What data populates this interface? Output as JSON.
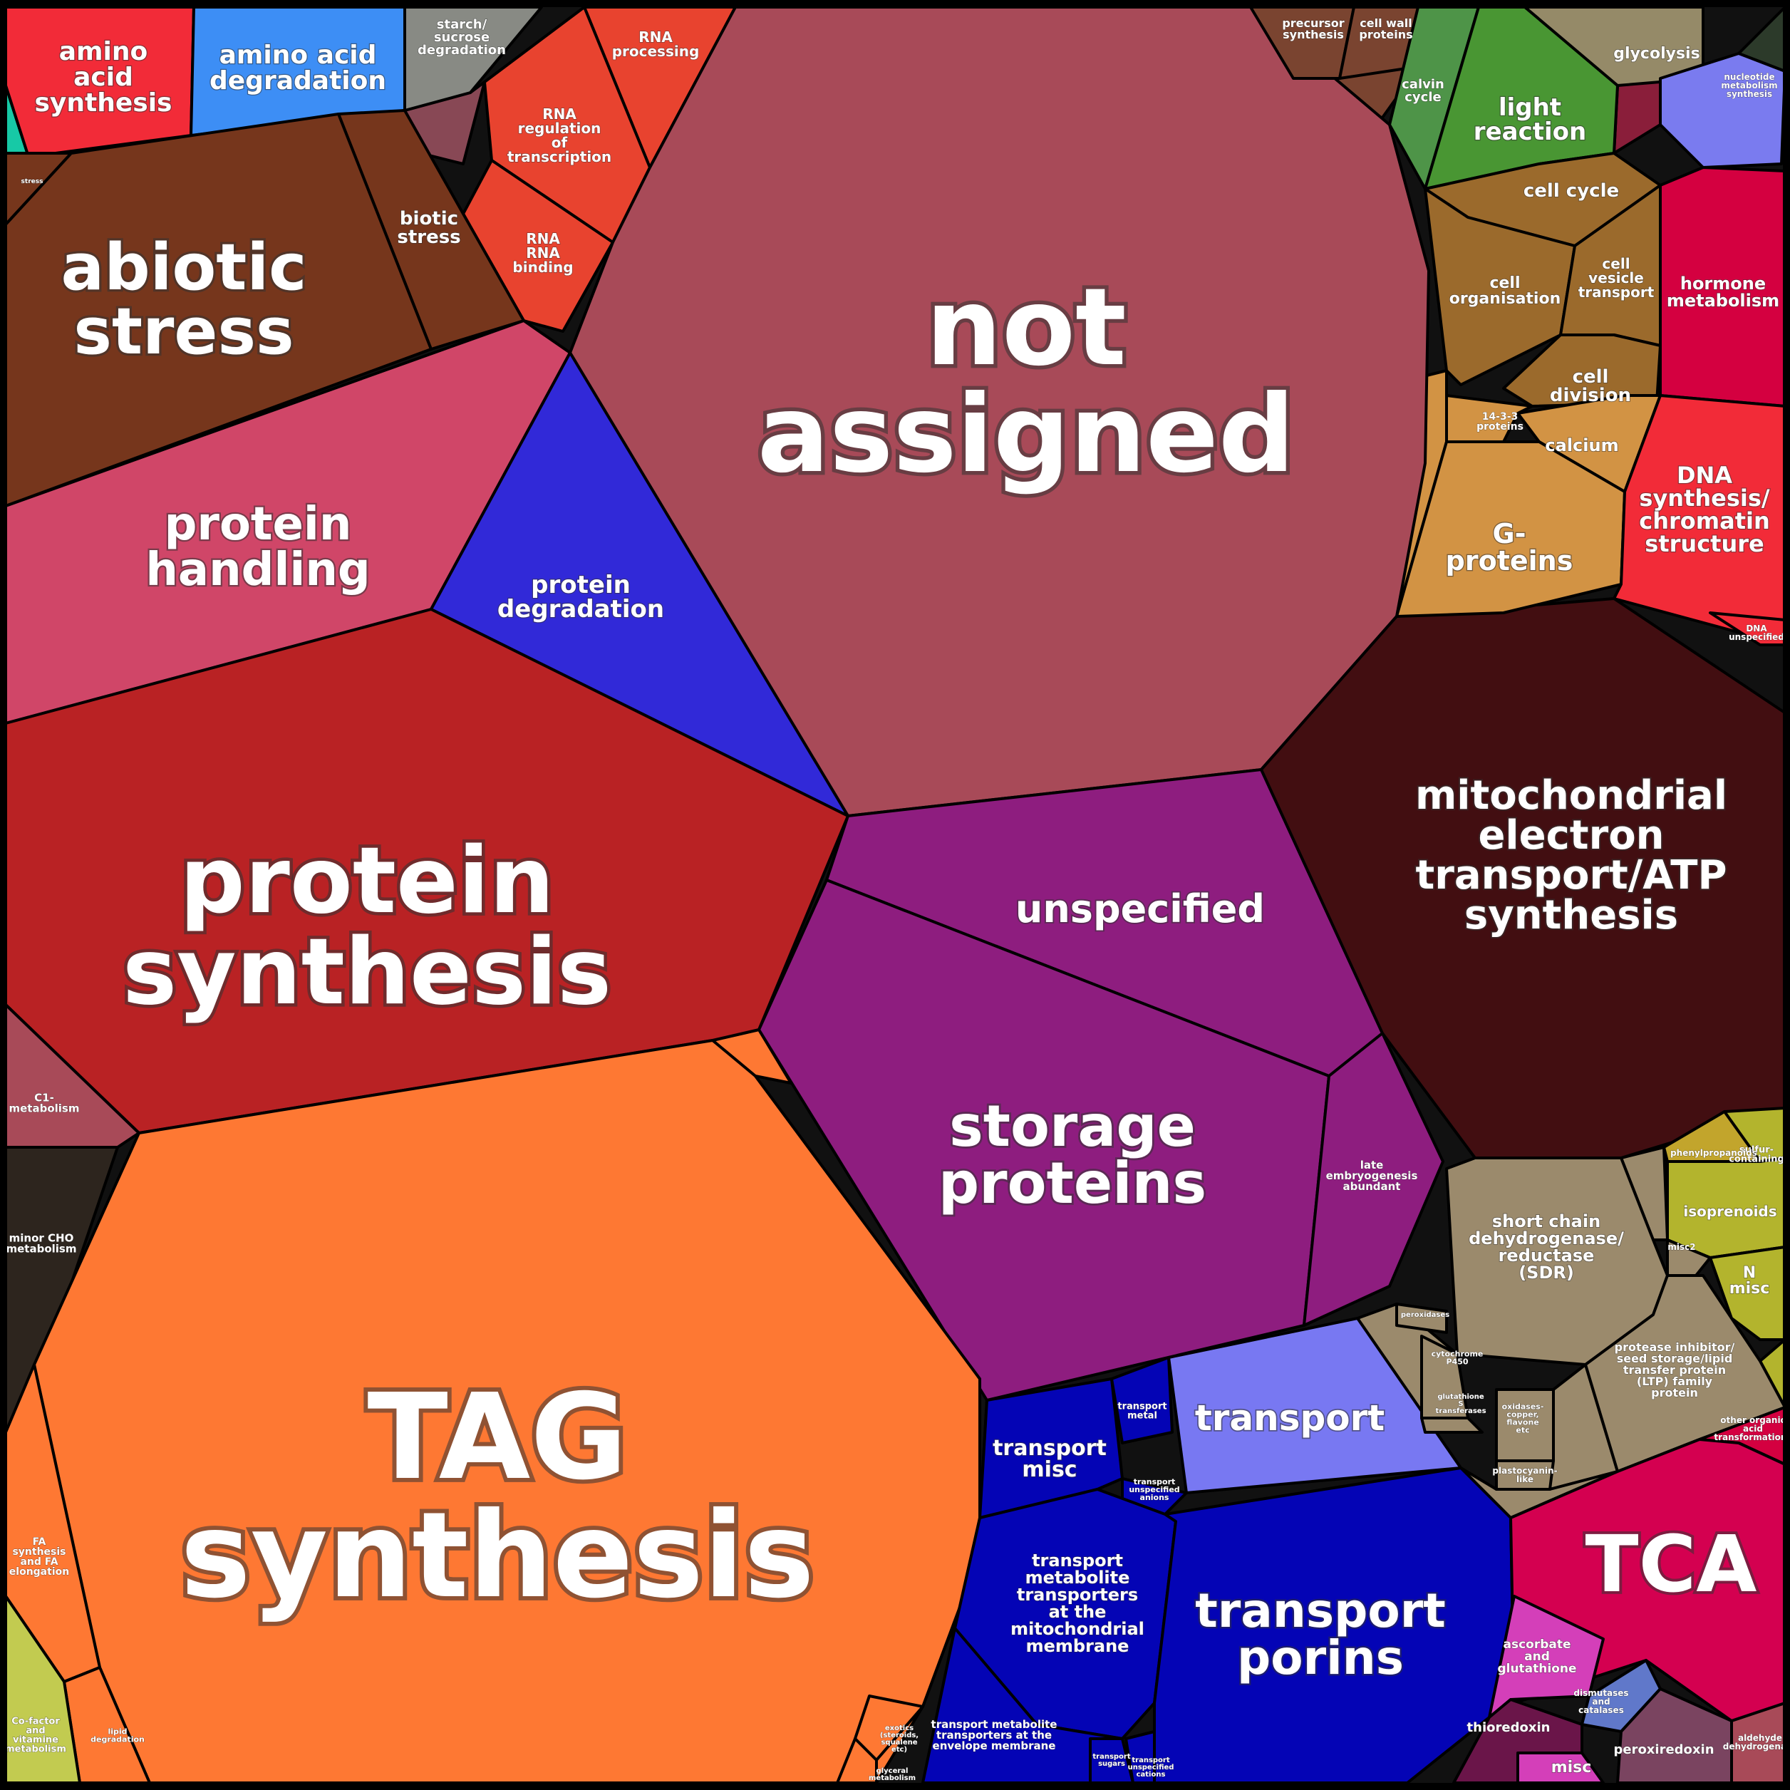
{
  "cells": [
    {
      "id": "amino-acid-synthesis",
      "label": [
        "amino",
        "acid",
        "synthesis"
      ],
      "color": "#f22b38"
    },
    {
      "id": "amino-acid-degradation",
      "label": [
        "amino acid",
        "degradation"
      ],
      "color": "#3d8ef5"
    },
    {
      "id": "starch-sucrose-degradation",
      "label": [
        "starch/",
        "sucrose",
        "degradation"
      ],
      "color": "#888a84"
    },
    {
      "id": "rna-processing",
      "label": [
        "RNA",
        "processing"
      ],
      "color": "#e8432f"
    },
    {
      "id": "rna-regulation-of-transcription",
      "label": [
        "RNA",
        "regulation",
        "of",
        "transcription"
      ],
      "color": "#e8432f"
    },
    {
      "id": "rna-binding",
      "label": [
        "RNA",
        "RNA",
        "binding"
      ],
      "color": "#e8432f"
    },
    {
      "id": "stress",
      "label": [
        "stress"
      ],
      "color": "#76361c"
    },
    {
      "id": "biotic-stress",
      "label": [
        "biotic",
        "stress"
      ],
      "color": "#76361c"
    },
    {
      "id": "abiotic-stress",
      "label": [
        "abiotic",
        "stress"
      ],
      "color": "#76361c"
    },
    {
      "id": "not-assigned",
      "label": [
        "not",
        "assigned"
      ],
      "color": "#a84a58"
    },
    {
      "id": "protein-handling",
      "label": [
        "protein",
        "handling"
      ],
      "color": "#d04668"
    },
    {
      "id": "protein-degradation",
      "label": [
        "protein",
        "degradation"
      ],
      "color": "#3129d8"
    },
    {
      "id": "protein-synthesis",
      "label": [
        "protein",
        "synthesis"
      ],
      "color": "#b92224"
    },
    {
      "id": "unspecified",
      "label": [
        "unspecified"
      ],
      "color": "#8e1d7f"
    },
    {
      "id": "storage-proteins",
      "label": [
        "storage",
        "proteins"
      ],
      "color": "#8e1d7f"
    },
    {
      "id": "late-embryogenesis-abundant",
      "label": [
        "late",
        "embryogenesis",
        "abundant"
      ],
      "color": "#8e1d7f"
    },
    {
      "id": "mitochondrial-electron-transport",
      "label": [
        "mitochondrial",
        "electron",
        "transport/ATP",
        "synthesis"
      ],
      "color": "#420e11"
    },
    {
      "id": "c1-metabolism",
      "label": [
        "C1-",
        "metabolism"
      ],
      "color": "#a84a58"
    },
    {
      "id": "minor-cho-metabolism",
      "label": [
        "minor CHO",
        "metabolism"
      ],
      "color": "#2d251e"
    },
    {
      "id": "tag-synthesis",
      "label": [
        "TAG",
        "synthesis"
      ],
      "color": "#fe7833"
    },
    {
      "id": "fa-synthesis-elongation",
      "label": [
        "FA",
        "synthesis",
        "and FA",
        "elongation"
      ],
      "color": "#fe7833"
    },
    {
      "id": "lipid-degradation",
      "label": [
        "lipid",
        "degradation"
      ],
      "color": "#fe7833"
    },
    {
      "id": "exotics",
      "label": [
        "exotics",
        "(steroids,",
        "squalene",
        "etc)"
      ],
      "color": "#fe7833"
    },
    {
      "id": "glyceral-metabolism",
      "label": [
        "glyceral",
        "metabolism"
      ],
      "color": "#fe7833"
    },
    {
      "id": "cofactor-vitamine-metabolism",
      "label": [
        "Co-factor",
        "and",
        "vitamine",
        "metabolism"
      ],
      "color": "#c2cb50"
    },
    {
      "id": "transport",
      "label": [
        "transport"
      ],
      "color": "#7878f2"
    },
    {
      "id": "transport-misc",
      "label": [
        "transport",
        "misc"
      ],
      "color": "#0404b5"
    },
    {
      "id": "transport-metal",
      "label": [
        "transport",
        "metal"
      ],
      "color": "#0404b5"
    },
    {
      "id": "transport-unspecified-anions",
      "label": [
        "transport",
        "unspecified",
        "anions"
      ],
      "color": "#0404b5"
    },
    {
      "id": "transport-mito-membrane",
      "label": [
        "transport",
        "metabolite",
        "transporters",
        "at the",
        "mitochondrial",
        "membrane"
      ],
      "color": "#0404b5"
    },
    {
      "id": "transport-porins",
      "label": [
        "transport",
        "porins"
      ],
      "color": "#0404b5"
    },
    {
      "id": "transport-envelope-membrane",
      "label": [
        "transport metabolite",
        "transporters at the",
        "envelope membrane"
      ],
      "color": "#0404b5"
    },
    {
      "id": "transport-sugars",
      "label": [
        "transport",
        "sugars"
      ],
      "color": "#0404b5"
    },
    {
      "id": "transport-unspecified-cations",
      "label": [
        "transport",
        "unspecified",
        "cations"
      ],
      "color": "#0404b5"
    },
    {
      "id": "precursor-synthesis",
      "label": [
        "precursor",
        "synthesis"
      ],
      "color": "#7a4430"
    },
    {
      "id": "cell-wall-proteins",
      "label": [
        "cell wall",
        "proteins"
      ],
      "color": "#7a4430"
    },
    {
      "id": "calvin-cycle",
      "label": [
        "calvin",
        "cycle"
      ],
      "color": "#4e9448"
    },
    {
      "id": "light-reaction",
      "label": [
        "light",
        "reaction"
      ],
      "color": "#499633"
    },
    {
      "id": "glycolysis",
      "label": [
        "glycolysis"
      ],
      "color": "#958a68"
    },
    {
      "id": "nucleotide-metabolism",
      "label": [
        "nucleotide",
        "metabolism",
        "synthesis"
      ],
      "color": "#7a7bef"
    },
    {
      "id": "cell-cycle",
      "label": [
        "cell cycle"
      ],
      "color": "#9b6a2c"
    },
    {
      "id": "cell-organisation",
      "label": [
        "cell",
        "organisation"
      ],
      "color": "#9b6a2c"
    },
    {
      "id": "cell-vesicle-transport",
      "label": [
        "cell",
        "vesicle",
        "transport"
      ],
      "color": "#9b6a2c"
    },
    {
      "id": "cell-division",
      "label": [
        "cell",
        "division"
      ],
      "color": "#9b6a2c"
    },
    {
      "id": "hormone-metabolism",
      "label": [
        "hormone",
        "metabolism"
      ],
      "color": "#d40040"
    },
    {
      "id": "calcium",
      "label": [
        "calcium"
      ],
      "color": "#d29344"
    },
    {
      "id": "g-proteins",
      "label": [
        "G-",
        "proteins"
      ],
      "color": "#d29344"
    },
    {
      "id": "14-3-3-proteins",
      "label": [
        "14-3-3",
        "proteins"
      ],
      "color": "#d29344"
    },
    {
      "id": "dna-synthesis-chromatin",
      "label": [
        "DNA",
        "synthesis/",
        "chromatin",
        "structure"
      ],
      "color": "#f22b38"
    },
    {
      "id": "dna-unspecified",
      "label": [
        "DNA",
        "unspecified"
      ],
      "color": "#f22b38"
    },
    {
      "id": "short-chain-dehydrogenase",
      "label": [
        "short chain",
        "dehydrogenase/",
        "reductase",
        "(SDR)"
      ],
      "color": "#9b8a6c"
    },
    {
      "id": "protease-inhibitor-ltp",
      "label": [
        "protease inhibitor/",
        "seed storage/lipid",
        "transfer protein",
        "(LTP) family",
        "protein"
      ],
      "color": "#9b8a6c"
    },
    {
      "id": "isoprenoids",
      "label": [
        "isoprenoids"
      ],
      "color": "#b3b42d"
    },
    {
      "id": "n-misc",
      "label": [
        "N",
        "misc"
      ],
      "color": "#b3b42d"
    },
    {
      "id": "sulfur-containing",
      "label": [
        "sulfur-",
        "containing"
      ],
      "color": "#b3b42d"
    },
    {
      "id": "phenylpropanoids",
      "label": [
        "phenylpropanoids"
      ],
      "color": "#c2a52c"
    },
    {
      "id": "other-organic-acid",
      "label": [
        "other organic",
        "acid",
        "transformations"
      ],
      "color": "#d40040"
    },
    {
      "id": "tca",
      "label": [
        "TCA"
      ],
      "color": "#d40050"
    },
    {
      "id": "ascorbate-glutathione",
      "label": [
        "ascorbate",
        "and",
        "glutathione"
      ],
      "color": "#d43fb9"
    },
    {
      "id": "dismutases-catalases",
      "label": [
        "dismutases",
        "and",
        "catalases"
      ],
      "color": "#6078ca"
    },
    {
      "id": "thioredoxin",
      "label": [
        "thioredoxin"
      ],
      "color": "#6a1549"
    },
    {
      "id": "misc-redox",
      "label": [
        "misc"
      ],
      "color": "#d43fb9"
    },
    {
      "id": "peroxiredoxin",
      "label": [
        "peroxiredoxin"
      ],
      "color": "#7a4460"
    },
    {
      "id": "aldehyde-dehydrogenase",
      "label": [
        "aldehyde",
        "dehydrogenase"
      ],
      "color": "#a84a58"
    },
    {
      "id": "cytochrome-p450",
      "label": [
        "cytochrome",
        "P450"
      ],
      "color": "#9b8a6c"
    },
    {
      "id": "oxidases",
      "label": [
        "oxidases-",
        "copper,",
        "flavone",
        "etc"
      ],
      "color": "#9b8a6c"
    },
    {
      "id": "plastocyanin-like",
      "label": [
        "plastocyanin-",
        "like"
      ],
      "color": "#9b8a6c"
    },
    {
      "id": "glutathione-s-transferases",
      "label": [
        "glutathione",
        "S",
        "transferases"
      ],
      "color": "#9b8a6c"
    },
    {
      "id": "peroxidases",
      "label": [
        "peroxidases"
      ],
      "color": "#9b8a6c"
    },
    {
      "id": "misc2",
      "label": [
        "misc2"
      ],
      "color": "#9b8a6c"
    }
  ]
}
